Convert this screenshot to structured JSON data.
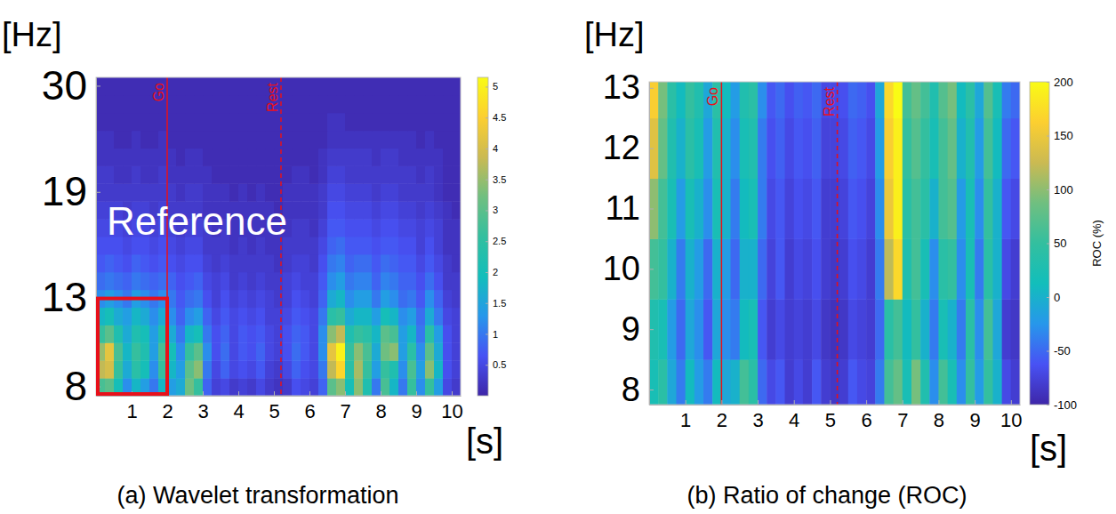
{
  "chart_data": [
    {
      "type": "heatmap",
      "title": "(a) Wavelet transformation",
      "xlabel": "[s]",
      "ylabel": "[Hz]",
      "x": [
        0,
        0.25,
        0.5,
        0.75,
        1,
        1.25,
        1.5,
        1.75,
        2,
        2.25,
        2.5,
        2.75,
        3,
        3.25,
        3.5,
        3.75,
        4,
        4.25,
        4.5,
        4.75,
        5,
        5.25,
        5.5,
        5.75,
        6,
        6.25,
        6.5,
        6.75,
        7,
        7.25,
        7.5,
        7.75,
        8,
        8.25,
        8.5,
        8.75,
        9,
        9.25,
        9.5,
        9.75,
        10
      ],
      "y": [
        8,
        9,
        10,
        11,
        12,
        13,
        14,
        15,
        16,
        17,
        18,
        19,
        20,
        22,
        24,
        26,
        28,
        30
      ],
      "z": [
        [
          2.8,
          3.0,
          2.0,
          1.2,
          1.8,
          1.4,
          1.0,
          1.8,
          1.4,
          1.6,
          3.2,
          2.6,
          0.8,
          0.4,
          0.5,
          0.3,
          0.4,
          0.3,
          0.5,
          0.3,
          0.2,
          0.3,
          0.6,
          0.5,
          0.4,
          0.8,
          3.0,
          3.4,
          2.0,
          3.4,
          2.2,
          1.0,
          2.8,
          1.8,
          1.0,
          2.6,
          1.2,
          2.6,
          1.4,
          0.5,
          0.3
        ],
        [
          3.8,
          4.0,
          2.6,
          1.6,
          2.4,
          2.0,
          1.2,
          2.6,
          1.8,
          1.4,
          3.0,
          3.4,
          1.0,
          0.5,
          0.8,
          0.5,
          0.6,
          0.5,
          0.7,
          0.4,
          0.3,
          0.5,
          0.8,
          0.6,
          0.5,
          1.0,
          3.8,
          4.6,
          2.4,
          3.6,
          2.6,
          1.4,
          2.6,
          2.2,
          1.2,
          2.8,
          1.4,
          3.4,
          1.8,
          0.6,
          0.4
        ],
        [
          3.5,
          4.2,
          2.8,
          1.8,
          2.6,
          2.2,
          1.4,
          2.8,
          2.0,
          1.2,
          2.6,
          3.0,
          1.2,
          0.6,
          0.9,
          0.5,
          0.7,
          0.6,
          0.8,
          0.5,
          0.4,
          0.6,
          0.9,
          0.7,
          0.5,
          1.2,
          4.2,
          5.0,
          2.6,
          3.4,
          2.8,
          1.6,
          3.2,
          3.4,
          1.4,
          2.4,
          1.2,
          3.0,
          1.6,
          0.6,
          0.4
        ],
        [
          2.6,
          3.0,
          2.2,
          1.6,
          2.2,
          2.0,
          1.4,
          2.2,
          1.6,
          1.0,
          1.8,
          2.0,
          1.0,
          0.6,
          0.8,
          0.5,
          0.7,
          0.6,
          0.7,
          0.5,
          0.4,
          0.6,
          0.8,
          0.7,
          0.5,
          1.2,
          3.4,
          3.8,
          2.2,
          2.6,
          2.4,
          1.8,
          3.0,
          2.8,
          1.4,
          1.8,
          1.0,
          2.4,
          1.4,
          0.6,
          0.4
        ],
        [
          1.8,
          2.0,
          1.6,
          1.4,
          1.8,
          1.6,
          1.2,
          1.6,
          1.2,
          0.8,
          1.2,
          1.4,
          0.8,
          0.5,
          0.7,
          0.5,
          0.6,
          0.5,
          0.6,
          0.4,
          0.4,
          0.5,
          0.7,
          0.6,
          0.5,
          1.0,
          2.4,
          2.6,
          1.6,
          1.8,
          1.8,
          1.4,
          2.0,
          1.8,
          1.2,
          1.4,
          0.9,
          1.6,
          1.0,
          0.5,
          0.4
        ],
        [
          1.2,
          1.4,
          1.2,
          1.0,
          1.4,
          1.2,
          1.0,
          1.2,
          1.0,
          0.7,
          0.9,
          1.0,
          0.6,
          0.4,
          0.6,
          0.4,
          0.5,
          0.4,
          0.5,
          0.4,
          0.3,
          0.4,
          0.6,
          0.5,
          0.4,
          0.8,
          1.6,
          1.8,
          1.2,
          1.4,
          1.4,
          1.0,
          1.4,
          1.2,
          0.9,
          1.0,
          0.7,
          1.2,
          0.8,
          0.4,
          0.3
        ],
        [
          0.9,
          1.0,
          0.9,
          0.8,
          1.0,
          0.9,
          0.8,
          0.9,
          0.8,
          0.6,
          0.7,
          0.8,
          0.5,
          0.4,
          0.5,
          0.3,
          0.4,
          0.3,
          0.4,
          0.3,
          0.3,
          0.4,
          0.5,
          0.4,
          0.4,
          0.7,
          1.2,
          1.4,
          1.0,
          1.1,
          1.1,
          0.8,
          1.1,
          1.0,
          0.8,
          0.8,
          0.6,
          0.9,
          0.6,
          0.3,
          0.3
        ],
        [
          0.7,
          0.8,
          0.7,
          0.6,
          0.8,
          0.7,
          0.6,
          0.7,
          0.6,
          0.5,
          0.6,
          0.6,
          0.4,
          0.3,
          0.4,
          0.3,
          0.3,
          0.3,
          0.3,
          0.3,
          0.2,
          0.3,
          0.4,
          0.4,
          0.3,
          0.6,
          1.0,
          1.1,
          0.8,
          0.9,
          0.9,
          0.7,
          0.9,
          0.8,
          0.7,
          0.7,
          0.5,
          0.7,
          0.5,
          0.3,
          0.2
        ],
        [
          0.6,
          0.6,
          0.6,
          0.5,
          0.6,
          0.6,
          0.5,
          0.6,
          0.5,
          0.4,
          0.5,
          0.5,
          0.3,
          0.3,
          0.3,
          0.2,
          0.3,
          0.2,
          0.3,
          0.2,
          0.2,
          0.3,
          0.3,
          0.3,
          0.3,
          0.5,
          0.8,
          0.9,
          0.7,
          0.7,
          0.7,
          0.6,
          0.7,
          0.7,
          0.6,
          0.6,
          0.4,
          0.6,
          0.4,
          0.2,
          0.2
        ],
        [
          0.5,
          0.5,
          0.5,
          0.4,
          0.5,
          0.5,
          0.4,
          0.5,
          0.4,
          0.3,
          0.4,
          0.4,
          0.3,
          0.2,
          0.3,
          0.2,
          0.2,
          0.2,
          0.2,
          0.2,
          0.2,
          0.2,
          0.3,
          0.3,
          0.2,
          0.4,
          0.7,
          0.7,
          0.6,
          0.6,
          0.6,
          0.5,
          0.6,
          0.6,
          0.5,
          0.5,
          0.4,
          0.5,
          0.4,
          0.2,
          0.2
        ],
        [
          0.4,
          0.4,
          0.4,
          0.3,
          0.4,
          0.4,
          0.3,
          0.4,
          0.3,
          0.3,
          0.3,
          0.3,
          0.2,
          0.2,
          0.2,
          0.2,
          0.2,
          0.2,
          0.2,
          0.2,
          0.1,
          0.2,
          0.2,
          0.2,
          0.2,
          0.3,
          0.6,
          0.6,
          0.5,
          0.5,
          0.5,
          0.4,
          0.5,
          0.5,
          0.4,
          0.4,
          0.3,
          0.4,
          0.3,
          0.2,
          0.1
        ],
        [
          0.3,
          0.3,
          0.3,
          0.3,
          0.3,
          0.3,
          0.3,
          0.3,
          0.3,
          0.2,
          0.3,
          0.3,
          0.2,
          0.2,
          0.2,
          0.1,
          0.2,
          0.1,
          0.2,
          0.1,
          0.1,
          0.2,
          0.2,
          0.2,
          0.2,
          0.3,
          0.5,
          0.5,
          0.4,
          0.4,
          0.4,
          0.3,
          0.4,
          0.4,
          0.3,
          0.3,
          0.3,
          0.3,
          0.2,
          0.1,
          0.1
        ],
        [
          0.3,
          0.3,
          0.2,
          0.2,
          0.3,
          0.2,
          0.2,
          0.3,
          0.2,
          0.2,
          0.2,
          0.2,
          0.2,
          0.1,
          0.1,
          0.1,
          0.1,
          0.1,
          0.1,
          0.1,
          0.1,
          0.1,
          0.2,
          0.2,
          0.1,
          0.2,
          0.4,
          0.4,
          0.3,
          0.3,
          0.3,
          0.3,
          0.3,
          0.3,
          0.3,
          0.3,
          0.2,
          0.3,
          0.2,
          0.1,
          0.1
        ],
        [
          0.2,
          0.2,
          0.2,
          0.2,
          0.2,
          0.2,
          0.2,
          0.2,
          0.2,
          0.1,
          0.2,
          0.2,
          0.1,
          0.1,
          0.1,
          0.1,
          0.1,
          0.1,
          0.1,
          0.1,
          0.1,
          0.1,
          0.1,
          0.1,
          0.1,
          0.2,
          0.3,
          0.3,
          0.3,
          0.3,
          0.3,
          0.2,
          0.3,
          0.3,
          0.2,
          0.2,
          0.2,
          0.2,
          0.2,
          0.1,
          0.1
        ],
        [
          0.2,
          0.2,
          0.1,
          0.1,
          0.2,
          0.1,
          0.1,
          0.2,
          0.1,
          0.1,
          0.1,
          0.1,
          0.1,
          0.1,
          0.1,
          0.1,
          0.1,
          0.1,
          0.1,
          0.1,
          0.1,
          0.1,
          0.1,
          0.1,
          0.1,
          0.1,
          0.2,
          0.2,
          0.2,
          0.2,
          0.2,
          0.2,
          0.2,
          0.2,
          0.2,
          0.2,
          0.1,
          0.2,
          0.1,
          0.1,
          0.1
        ],
        [
          0.1,
          0.1,
          0.1,
          0.1,
          0.1,
          0.1,
          0.1,
          0.1,
          0.1,
          0.1,
          0.1,
          0.1,
          0.1,
          0.1,
          0.1,
          0.1,
          0.1,
          0.1,
          0.1,
          0.1,
          0.1,
          0.1,
          0.1,
          0.1,
          0.1,
          0.1,
          0.2,
          0.2,
          0.1,
          0.1,
          0.1,
          0.1,
          0.1,
          0.1,
          0.1,
          0.1,
          0.1,
          0.1,
          0.1,
          0.1,
          0.1
        ],
        [
          0.1,
          0.1,
          0.1,
          0.1,
          0.1,
          0.1,
          0.1,
          0.1,
          0.1,
          0.1,
          0.1,
          0.1,
          0.1,
          0.1,
          0.1,
          0.1,
          0.1,
          0.1,
          0.1,
          0.1,
          0.1,
          0.1,
          0.1,
          0.1,
          0.1,
          0.1,
          0.1,
          0.1,
          0.1,
          0.1,
          0.1,
          0.1,
          0.1,
          0.1,
          0.1,
          0.1,
          0.1,
          0.1,
          0.1,
          0.1,
          0.1
        ],
        [
          0.1,
          0.1,
          0.1,
          0.1,
          0.1,
          0.1,
          0.1,
          0.1,
          0.1,
          0.1,
          0.1,
          0.1,
          0.1,
          0.1,
          0.1,
          0.1,
          0.1,
          0.1,
          0.1,
          0.1,
          0.1,
          0.1,
          0.1,
          0.1,
          0.1,
          0.1,
          0.1,
          0.1,
          0.1,
          0.1,
          0.1,
          0.1,
          0.1,
          0.1,
          0.1,
          0.1,
          0.1,
          0.1,
          0.1,
          0.1,
          0.1
        ]
      ],
      "xlim": [
        0,
        10.25
      ],
      "xticks": [
        1,
        2,
        3,
        4,
        5,
        6,
        7,
        8,
        9,
        10
      ],
      "yticks": [
        8,
        13,
        19,
        30
      ],
      "zlim": [
        0,
        5.15
      ],
      "zticks": [
        0.5,
        1,
        1.5,
        2,
        2.5,
        3,
        3.5,
        4,
        4.5,
        5
      ],
      "events": [
        {
          "x": 2,
          "label": "Go",
          "line_style": "solid"
        },
        {
          "x": 5.2,
          "label": "Rest",
          "line_style": "dashed"
        }
      ],
      "annotations": [
        {
          "text": "Reference",
          "x": [
            0,
            2
          ],
          "y": [
            8,
            13
          ]
        }
      ]
    },
    {
      "type": "heatmap",
      "title": "(b) Ratio of change (ROC)",
      "xlabel": "[s]",
      "ylabel": "[Hz]",
      "colorbar_label": "ROC (%)",
      "x": [
        0,
        0.25,
        0.5,
        0.75,
        1,
        1.25,
        1.5,
        1.75,
        2,
        2.25,
        2.5,
        2.75,
        3,
        3.25,
        3.5,
        3.75,
        4,
        4.25,
        4.5,
        4.75,
        5,
        5.25,
        5.5,
        5.75,
        6,
        6.25,
        6.5,
        6.75,
        7,
        7.25,
        7.5,
        7.75,
        8,
        8.25,
        8.5,
        8.75,
        9,
        9.25,
        9.5,
        9.75,
        10
      ],
      "y": [
        8,
        9,
        10,
        11,
        12,
        13
      ],
      "z": [
        [
          20,
          40,
          -10,
          -40,
          10,
          -20,
          -40,
          10,
          -10,
          0,
          60,
          40,
          -50,
          -70,
          -60,
          -80,
          -70,
          -80,
          -60,
          -80,
          -85,
          -80,
          -60,
          -70,
          -75,
          -40,
          60,
          80,
          20,
          90,
          30,
          -30,
          60,
          20,
          -30,
          50,
          -20,
          50,
          0,
          -70,
          -80
        ],
        [
          30,
          20,
          -20,
          -50,
          -10,
          -30,
          -60,
          -10,
          -30,
          -40,
          10,
          20,
          -60,
          -80,
          -70,
          -80,
          -75,
          -80,
          -70,
          -85,
          -90,
          -85,
          -70,
          -75,
          -80,
          -50,
          40,
          60,
          10,
          50,
          0,
          -40,
          20,
          0,
          -40,
          40,
          -30,
          60,
          -10,
          -80,
          -85
        ],
        [
          60,
          50,
          0,
          -40,
          0,
          -20,
          -50,
          0,
          -20,
          -50,
          0,
          0,
          -50,
          -75,
          -60,
          -80,
          -70,
          -75,
          -65,
          -80,
          -85,
          -80,
          -65,
          -70,
          -80,
          -40,
          120,
          170,
          30,
          60,
          20,
          -30,
          40,
          50,
          -30,
          20,
          -40,
          40,
          0,
          -70,
          -80
        ],
        [
          100,
          60,
          20,
          -20,
          20,
          0,
          -30,
          20,
          0,
          -40,
          10,
          20,
          -40,
          -70,
          -60,
          -75,
          -65,
          -70,
          -60,
          -80,
          -80,
          -75,
          -60,
          -65,
          -75,
          -30,
          150,
          190,
          40,
          60,
          40,
          0,
          60,
          70,
          -20,
          20,
          -30,
          50,
          0,
          -60,
          -70
        ],
        [
          140,
          80,
          30,
          0,
          40,
          20,
          -20,
          30,
          0,
          -30,
          20,
          30,
          -40,
          -65,
          -55,
          -70,
          -60,
          -65,
          -55,
          -75,
          -75,
          -70,
          -55,
          -60,
          -70,
          -20,
          160,
          190,
          50,
          70,
          50,
          20,
          60,
          80,
          0,
          30,
          -20,
          60,
          10,
          -50,
          -60
        ],
        [
          160,
          90,
          40,
          10,
          50,
          30,
          -10,
          40,
          10,
          -20,
          30,
          40,
          -30,
          -60,
          -50,
          -65,
          -55,
          -60,
          -50,
          -70,
          -70,
          -65,
          -50,
          -55,
          -65,
          -10,
          170,
          200,
          60,
          80,
          60,
          30,
          70,
          90,
          10,
          40,
          -10,
          70,
          20,
          -40,
          -50
        ]
      ],
      "xlim": [
        0,
        10.25
      ],
      "xticks": [
        1,
        2,
        3,
        4,
        5,
        6,
        7,
        8,
        9,
        10
      ],
      "ylim": [
        7.75,
        13.1
      ],
      "yticks": [
        8,
        9,
        10,
        11,
        12,
        13
      ],
      "zlim": [
        -100,
        200
      ],
      "zticks": [
        -100,
        -50,
        0,
        50,
        100,
        150,
        200
      ],
      "events": [
        {
          "x": 2,
          "label": "Go",
          "line_style": "solid"
        },
        {
          "x": 5.2,
          "label": "Rest",
          "line_style": "dashed"
        }
      ]
    }
  ]
}
